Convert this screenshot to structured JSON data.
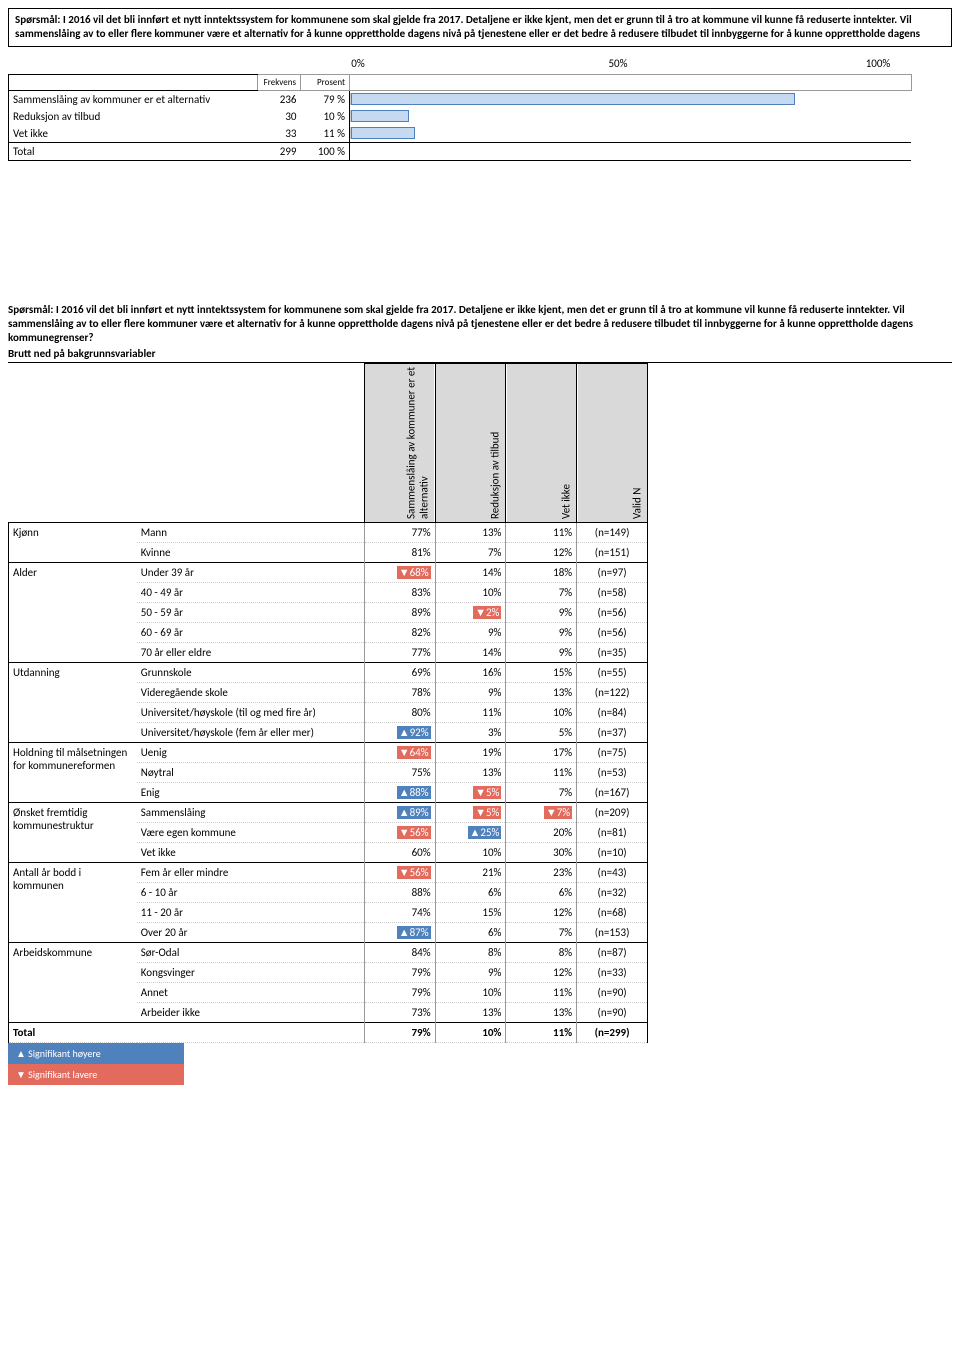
{
  "question1": "Spørsmål: I 2016 vil det bli innført et nytt inntektssystem for kommunene som skal gjelde fra 2017. Detaljene er ikke kjent, men det er grunn til å tro at kommune vil kunne få reduserte inntekter. Vil sammenslåing av to eller flere kommuner være et alternativ for å kunne opprettholde dagens nivå på tjenestene eller er det bedre å redusere tilbudet til innbyggerne for å kunne opprettholde dagens",
  "axis": {
    "t0": "0%",
    "t50": "50%",
    "t100": "100%"
  },
  "freqHeaders": {
    "f": "Frekvens",
    "p": "Prosent"
  },
  "freqRows": [
    {
      "label": "Sammenslåing av kommuner er et alternativ",
      "f": "236",
      "p": "79 %",
      "bar": 79
    },
    {
      "label": "Reduksjon av tilbud",
      "f": "30",
      "p": "10 %",
      "bar": 10
    },
    {
      "label": "Vet ikke",
      "f": "33",
      "p": "11 %",
      "bar": 11
    },
    {
      "label": "Total",
      "f": "299",
      "p": "100 %",
      "bar": null
    }
  ],
  "question2": "Spørsmål: I 2016 vil det bli innført et nytt inntektssystem for kommunene som skal gjelde fra 2017. Detaljene er ikke kjent, men det er grunn til å tro at kommune vil kunne få reduserte inntekter. Vil sammenslåing av to eller flere kommuner være et alternativ for å kunne opprettholde dagens nivå på tjenestene eller er det bedre å redusere tilbudet til innbyggerne for å kunne opprettholde dagens kommunegrenser?",
  "question2sub": "Brutt ned på bakgrunnsvariabler",
  "colHeaders": [
    "Sammenslåing av kommuner er et alternativ",
    "Reduksjon av tilbud",
    "Vet ikke",
    "Valid N"
  ],
  "groups": [
    {
      "name": "Kjønn",
      "rows": [
        {
          "cat": "Mann",
          "v": [
            "77%",
            "13%",
            "11%",
            "(n=149)"
          ],
          "sig": [
            "",
            "",
            "",
            ""
          ]
        },
        {
          "cat": "Kvinne",
          "v": [
            "81%",
            "7%",
            "12%",
            "(n=151)"
          ],
          "sig": [
            "",
            "",
            "",
            ""
          ]
        }
      ]
    },
    {
      "name": "Alder",
      "rows": [
        {
          "cat": "Under 39 år",
          "v": [
            "68%",
            "14%",
            "18%",
            "(n=97)"
          ],
          "sig": [
            "down",
            "",
            "",
            ""
          ]
        },
        {
          "cat": "40 - 49 år",
          "v": [
            "83%",
            "10%",
            "7%",
            "(n=58)"
          ],
          "sig": [
            "",
            "",
            "",
            ""
          ]
        },
        {
          "cat": "50 - 59 år",
          "v": [
            "89%",
            "2%",
            "9%",
            "(n=56)"
          ],
          "sig": [
            "",
            "down",
            "",
            ""
          ]
        },
        {
          "cat": "60 - 69 år",
          "v": [
            "82%",
            "9%",
            "9%",
            "(n=56)"
          ],
          "sig": [
            "",
            "",
            "",
            ""
          ]
        },
        {
          "cat": "70 år eller eldre",
          "v": [
            "77%",
            "14%",
            "9%",
            "(n=35)"
          ],
          "sig": [
            "",
            "",
            "",
            ""
          ]
        }
      ]
    },
    {
      "name": "Utdanning",
      "rows": [
        {
          "cat": "Grunnskole",
          "v": [
            "69%",
            "16%",
            "15%",
            "(n=55)"
          ],
          "sig": [
            "",
            "",
            "",
            ""
          ]
        },
        {
          "cat": "Videregående skole",
          "v": [
            "78%",
            "9%",
            "13%",
            "(n=122)"
          ],
          "sig": [
            "",
            "",
            "",
            ""
          ]
        },
        {
          "cat": "Universitet/høyskole (til og med fire år)",
          "v": [
            "80%",
            "11%",
            "10%",
            "(n=84)"
          ],
          "sig": [
            "",
            "",
            "",
            ""
          ]
        },
        {
          "cat": "Universitet/høyskole (fem år eller mer)",
          "v": [
            "92%",
            "3%",
            "5%",
            "(n=37)"
          ],
          "sig": [
            "up",
            "",
            "",
            ""
          ]
        }
      ]
    },
    {
      "name": "Holdning til målsetningen for kommunereformen",
      "rows": [
        {
          "cat": "Uenig",
          "v": [
            "64%",
            "19%",
            "17%",
            "(n=75)"
          ],
          "sig": [
            "down",
            "",
            "",
            ""
          ]
        },
        {
          "cat": "Nøytral",
          "v": [
            "75%",
            "13%",
            "11%",
            "(n=53)"
          ],
          "sig": [
            "",
            "",
            "",
            ""
          ]
        },
        {
          "cat": "Enig",
          "v": [
            "88%",
            "5%",
            "7%",
            "(n=167)"
          ],
          "sig": [
            "up",
            "down",
            "",
            ""
          ]
        }
      ]
    },
    {
      "name": "Ønsket fremtidig kommunestruktur",
      "rows": [
        {
          "cat": "Sammenslåing",
          "v": [
            "89%",
            "5%",
            "7%",
            "(n=209)"
          ],
          "sig": [
            "up",
            "down",
            "down",
            ""
          ]
        },
        {
          "cat": "Være egen kommune",
          "v": [
            "56%",
            "25%",
            "20%",
            "(n=81)"
          ],
          "sig": [
            "down",
            "up",
            "",
            ""
          ]
        },
        {
          "cat": "Vet ikke",
          "v": [
            "60%",
            "10%",
            "30%",
            "(n=10)"
          ],
          "sig": [
            "",
            "",
            "",
            ""
          ]
        }
      ]
    },
    {
      "name": "Antall år bodd i kommunen",
      "rows": [
        {
          "cat": "Fem år eller mindre",
          "v": [
            "56%",
            "21%",
            "23%",
            "(n=43)"
          ],
          "sig": [
            "down",
            "",
            "",
            ""
          ]
        },
        {
          "cat": "6 - 10 år",
          "v": [
            "88%",
            "6%",
            "6%",
            "(n=32)"
          ],
          "sig": [
            "",
            "",
            "",
            ""
          ]
        },
        {
          "cat": "11 - 20 år",
          "v": [
            "74%",
            "15%",
            "12%",
            "(n=68)"
          ],
          "sig": [
            "",
            "",
            "",
            ""
          ]
        },
        {
          "cat": "Over 20 år",
          "v": [
            "87%",
            "6%",
            "7%",
            "(n=153)"
          ],
          "sig": [
            "up",
            "",
            "",
            ""
          ]
        }
      ]
    },
    {
      "name": "Arbeidskommune",
      "rows": [
        {
          "cat": "Sør-Odal",
          "v": [
            "84%",
            "8%",
            "8%",
            "(n=87)"
          ],
          "sig": [
            "",
            "",
            "",
            ""
          ]
        },
        {
          "cat": "Kongsvinger",
          "v": [
            "79%",
            "9%",
            "12%",
            "(n=33)"
          ],
          "sig": [
            "",
            "",
            "",
            ""
          ]
        },
        {
          "cat": "Annet",
          "v": [
            "79%",
            "10%",
            "11%",
            "(n=90)"
          ],
          "sig": [
            "",
            "",
            "",
            ""
          ]
        },
        {
          "cat": "Arbeider ikke",
          "v": [
            "73%",
            "13%",
            "13%",
            "(n=90)"
          ],
          "sig": [
            "",
            "",
            "",
            ""
          ]
        }
      ]
    }
  ],
  "totalRow": {
    "label": "Total",
    "v": [
      "79%",
      "10%",
      "11%",
      "(n=299)"
    ]
  },
  "legend": {
    "up": "▲ Signifikant høyere",
    "down": "▼ Signifikant lavere"
  },
  "barColor": "#c5d9f1",
  "barBorder": "#4f81bd"
}
